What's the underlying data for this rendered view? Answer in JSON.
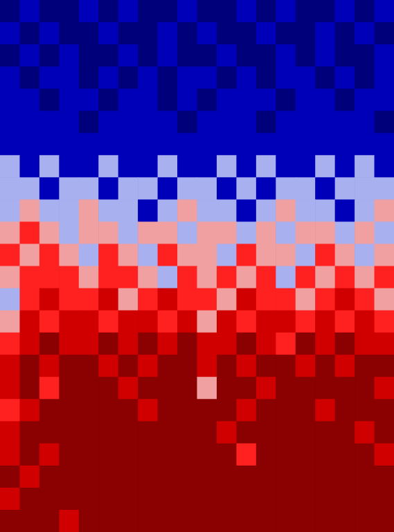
{
  "chart_data": {
    "type": "contour",
    "tick_labels": false,
    "zlim": [
      0,
      6
    ],
    "colors": [
      "#00007a",
      "#0000b8",
      "#a8b0f0",
      "#f0a0a0",
      "#ff2020",
      "#d00000",
      "#8b0000"
    ],
    "cells": [
      [
        0,
        1,
        0,
        0,
        1,
        0,
        1,
        0,
        0,
        1,
        0,
        0,
        1,
        0,
        1,
        0,
        0,
        1,
        0,
        1
      ],
      [
        1,
        0,
        1,
        0,
        0,
        1,
        0,
        0,
        1,
        0,
        1,
        0,
        0,
        1,
        0,
        0,
        1,
        0,
        1,
        0
      ],
      [
        0,
        1,
        0,
        1,
        0,
        0,
        1,
        0,
        1,
        0,
        0,
        1,
        0,
        0,
        1,
        0,
        1,
        0,
        0,
        1
      ],
      [
        1,
        0,
        1,
        1,
        0,
        1,
        0,
        1,
        0,
        1,
        1,
        0,
        1,
        0,
        1,
        1,
        0,
        1,
        0,
        1
      ],
      [
        1,
        1,
        0,
        1,
        1,
        0,
        1,
        1,
        0,
        1,
        0,
        1,
        1,
        1,
        0,
        1,
        1,
        0,
        1,
        1
      ],
      [
        1,
        1,
        1,
        1,
        0,
        1,
        1,
        1,
        1,
        0,
        1,
        1,
        1,
        0,
        1,
        1,
        1,
        1,
        1,
        0
      ],
      [
        1,
        1,
        1,
        1,
        1,
        1,
        1,
        1,
        1,
        1,
        1,
        1,
        1,
        1,
        1,
        1,
        1,
        1,
        1,
        1
      ],
      [
        2,
        1,
        2,
        1,
        1,
        2,
        1,
        1,
        2,
        1,
        1,
        2,
        1,
        2,
        1,
        1,
        2,
        1,
        2,
        1
      ],
      [
        2,
        2,
        1,
        2,
        2,
        1,
        2,
        2,
        1,
        2,
        2,
        1,
        2,
        1,
        2,
        2,
        1,
        2,
        2,
        2
      ],
      [
        2,
        3,
        2,
        2,
        3,
        2,
        2,
        1,
        2,
        3,
        2,
        2,
        1,
        2,
        3,
        2,
        2,
        1,
        2,
        3
      ],
      [
        3,
        4,
        3,
        2,
        3,
        3,
        2,
        3,
        3,
        2,
        3,
        3,
        2,
        3,
        2,
        3,
        3,
        2,
        3,
        2
      ],
      [
        4,
        3,
        4,
        3,
        2,
        4,
        3,
        2,
        4,
        3,
        3,
        2,
        4,
        3,
        3,
        2,
        4,
        3,
        2,
        3
      ],
      [
        3,
        4,
        4,
        4,
        3,
        4,
        4,
        3,
        2,
        4,
        3,
        4,
        3,
        4,
        2,
        4,
        3,
        4,
        3,
        4
      ],
      [
        2,
        4,
        5,
        4,
        4,
        5,
        3,
        4,
        5,
        4,
        4,
        3,
        5,
        4,
        4,
        3,
        4,
        5,
        4,
        3
      ],
      [
        3,
        5,
        4,
        5,
        5,
        4,
        5,
        5,
        4,
        5,
        3,
        5,
        4,
        5,
        5,
        4,
        5,
        4,
        5,
        4
      ],
      [
        4,
        5,
        6,
        5,
        5,
        6,
        5,
        6,
        5,
        6,
        5,
        5,
        6,
        5,
        4,
        6,
        5,
        6,
        5,
        5
      ],
      [
        5,
        6,
        5,
        6,
        6,
        5,
        6,
        5,
        6,
        6,
        5,
        6,
        5,
        6,
        6,
        5,
        6,
        5,
        6,
        6
      ],
      [
        5,
        6,
        4,
        6,
        6,
        6,
        5,
        6,
        6,
        6,
        3,
        6,
        6,
        5,
        6,
        6,
        6,
        6,
        6,
        5
      ],
      [
        4,
        5,
        6,
        6,
        6,
        6,
        6,
        5,
        6,
        6,
        6,
        6,
        5,
        6,
        6,
        6,
        5,
        6,
        6,
        6
      ],
      [
        5,
        6,
        6,
        6,
        6,
        6,
        6,
        6,
        6,
        6,
        6,
        5,
        6,
        6,
        6,
        6,
        6,
        6,
        5,
        6
      ],
      [
        5,
        6,
        5,
        6,
        6,
        6,
        6,
        6,
        6,
        6,
        6,
        6,
        4,
        6,
        6,
        6,
        6,
        6,
        6,
        5
      ],
      [
        6,
        5,
        6,
        6,
        6,
        6,
        6,
        6,
        6,
        6,
        6,
        6,
        6,
        6,
        6,
        6,
        6,
        6,
        6,
        6
      ],
      [
        5,
        6,
        6,
        6,
        6,
        6,
        6,
        6,
        6,
        6,
        6,
        6,
        6,
        6,
        6,
        6,
        6,
        6,
        6,
        6
      ],
      [
        6,
        6,
        6,
        5,
        6,
        6,
        6,
        6,
        6,
        6,
        6,
        6,
        6,
        6,
        6,
        6,
        6,
        6,
        6,
        6
      ]
    ]
  }
}
